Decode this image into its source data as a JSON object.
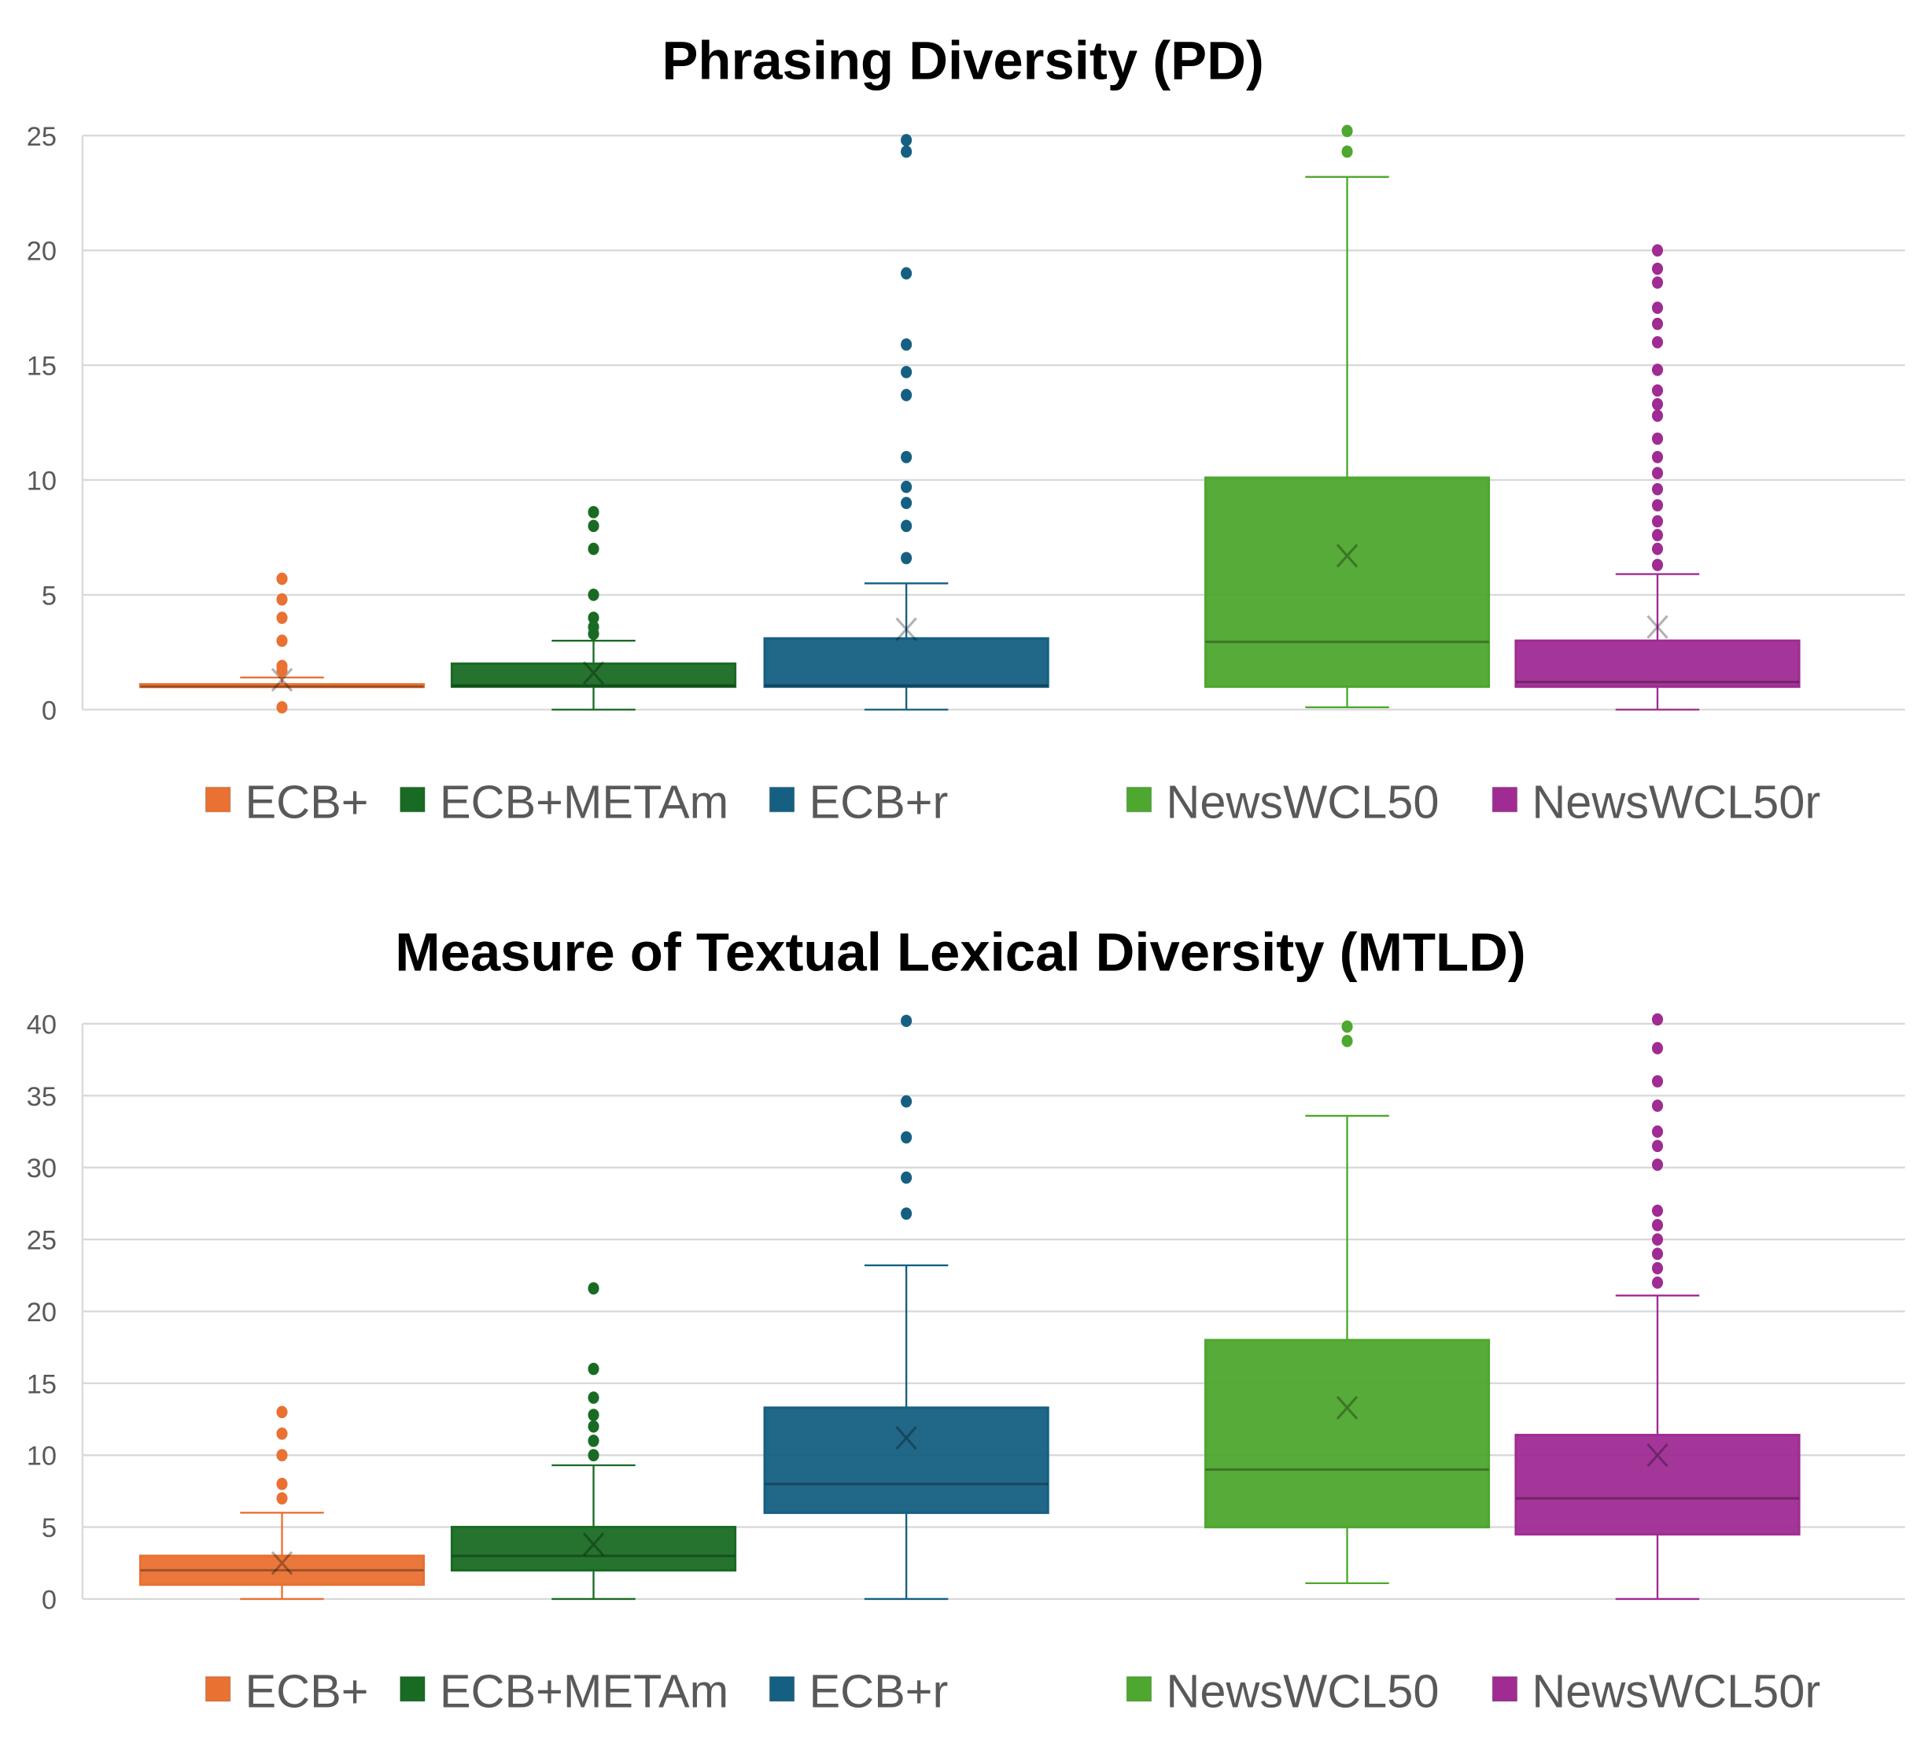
{
  "chart_data": [
    {
      "type": "box",
      "title": "Phrasing Diversity (PD)",
      "xlabel": "",
      "ylabel": "",
      "ylim": [
        0,
        25
      ],
      "yticks": [
        "0",
        "5",
        "10",
        "15",
        "20",
        "25"
      ],
      "grid": true,
      "legend_position": "bottom",
      "series": [
        {
          "name": "ECB+",
          "color": "#E97132",
          "whisker_low": 1,
          "q1": 1,
          "median": 1,
          "q3": 1.1,
          "whisker_high": 1.4,
          "mean": 1.3,
          "outliers": [
            0.1,
            1.7,
            1.9,
            3,
            4,
            4.8,
            5.7
          ]
        },
        {
          "name": "ECB+METAm",
          "color": "#196B24",
          "whisker_low": 0,
          "q1": 1,
          "median": 1.05,
          "q3": 2,
          "whisker_high": 3,
          "mean": 1.6,
          "outliers": [
            3.3,
            3.6,
            4,
            5,
            7,
            8,
            8.6
          ]
        },
        {
          "name": "ECB+r",
          "color": "#156082",
          "whisker_low": 0,
          "q1": 1,
          "median": 1.05,
          "q3": 3.1,
          "whisker_high": 5.5,
          "mean": 3.5,
          "outliers": [
            6.6,
            8,
            9,
            9.7,
            11,
            13.7,
            14.7,
            15.9,
            19,
            24.3,
            24.8
          ]
        },
        {
          "name": "NewsWCL50",
          "color": "#4EA72E",
          "whisker_low": 0.1,
          "q1": 1,
          "median": 2.95,
          "q3": 10.1,
          "whisker_high": 23.2,
          "mean": 6.7,
          "outliers": [
            24.3,
            25.2
          ]
        },
        {
          "name": "NewsWCL50r",
          "color": "#A02B93",
          "whisker_low": 0,
          "q1": 1,
          "median": 1.2,
          "q3": 3,
          "whisker_high": 5.9,
          "mean": 3.6,
          "outliers": [
            6.3,
            7,
            7.6,
            8.2,
            8.9,
            9.6,
            10.3,
            11,
            11.8,
            12.8,
            13.3,
            13.9,
            14.8,
            16,
            16.8,
            17.5,
            18.6,
            19.2,
            20
          ]
        }
      ]
    },
    {
      "type": "box",
      "title": "Measure of Textual Lexical Diversity (MTLD)",
      "xlabel": "",
      "ylabel": "",
      "ylim": [
        0,
        40
      ],
      "yticks": [
        "0",
        "5",
        "10",
        "15",
        "20",
        "25",
        "30",
        "35",
        "40"
      ],
      "grid": true,
      "legend_position": "bottom",
      "series": [
        {
          "name": "ECB+",
          "color": "#E97132",
          "whisker_low": 0,
          "q1": 1,
          "median": 2,
          "q3": 3,
          "whisker_high": 6,
          "mean": 2.5,
          "outliers": [
            7,
            8,
            10,
            11.5,
            13
          ]
        },
        {
          "name": "ECB+METAm",
          "color": "#196B24",
          "whisker_low": 0,
          "q1": 2,
          "median": 3,
          "q3": 5,
          "whisker_high": 9.3,
          "mean": 3.8,
          "outliers": [
            10,
            11,
            12,
            12.8,
            14,
            16,
            21.6
          ]
        },
        {
          "name": "ECB+r",
          "color": "#156082",
          "whisker_low": 0,
          "q1": 6,
          "median": 8,
          "q3": 13.3,
          "whisker_high": 23.2,
          "mean": 11.2,
          "outliers": [
            26.8,
            29.3,
            32.1,
            34.6,
            40.2
          ]
        },
        {
          "name": "NewsWCL50",
          "color": "#4EA72E",
          "whisker_low": 1.1,
          "q1": 5,
          "median": 9,
          "q3": 18,
          "whisker_high": 33.6,
          "mean": 13.3,
          "outliers": [
            38.8,
            39.8
          ]
        },
        {
          "name": "NewsWCL50r",
          "color": "#A02B93",
          "whisker_low": 0,
          "q1": 4.5,
          "median": 7,
          "q3": 11.4,
          "whisker_high": 21.1,
          "mean": 10,
          "outliers": [
            22,
            23,
            24,
            25,
            26,
            27,
            30.2,
            31.5,
            32.5,
            34.3,
            36,
            38.3,
            40.3
          ]
        }
      ]
    }
  ]
}
